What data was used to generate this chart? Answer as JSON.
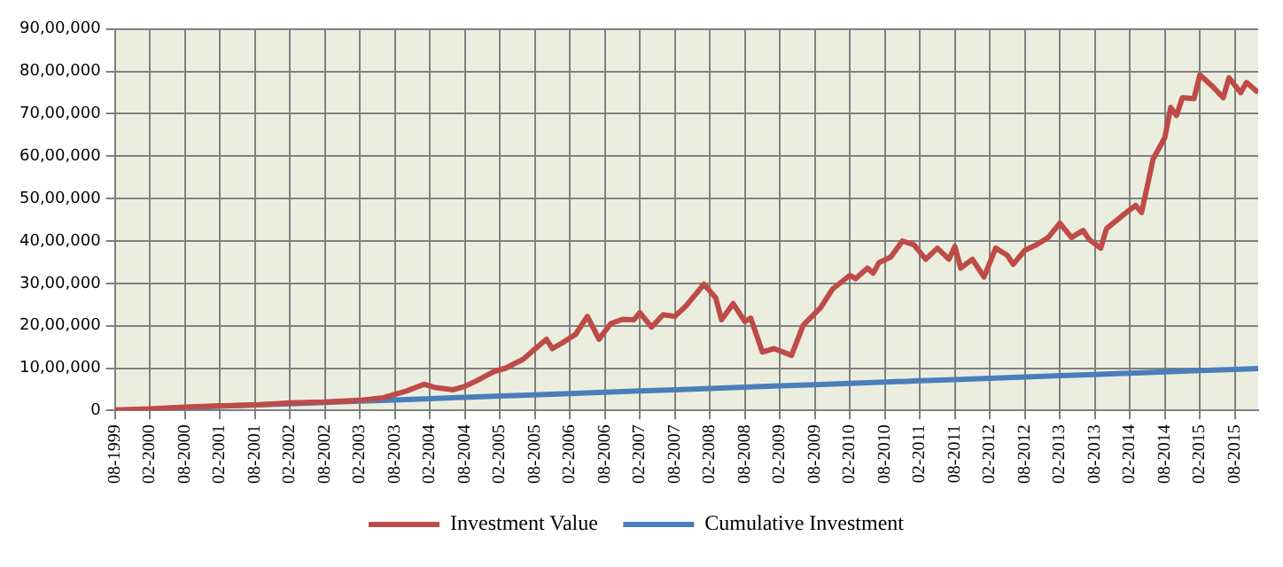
{
  "chart_data": {
    "type": "line",
    "legend": "bottom",
    "grid": true,
    "marker": "none",
    "line_style": "solid",
    "xlim": [
      "1999-08",
      "2015-12"
    ],
    "xticks": [
      {
        "value": "1999-08",
        "label": "08-1999"
      },
      {
        "value": "2000-02",
        "label": "02-2000"
      },
      {
        "value": "2000-08",
        "label": "08-2000"
      },
      {
        "value": "2001-02",
        "label": "02-2001"
      },
      {
        "value": "2001-08",
        "label": "08-2001"
      },
      {
        "value": "2002-02",
        "label": "02-2002"
      },
      {
        "value": "2002-08",
        "label": "08-2002"
      },
      {
        "value": "2003-02",
        "label": "02-2003"
      },
      {
        "value": "2003-08",
        "label": "08-2003"
      },
      {
        "value": "2004-02",
        "label": "02-2004"
      },
      {
        "value": "2004-08",
        "label": "08-2004"
      },
      {
        "value": "2005-02",
        "label": "02-2005"
      },
      {
        "value": "2005-08",
        "label": "08-2005"
      },
      {
        "value": "2006-02",
        "label": "02-2006"
      },
      {
        "value": "2006-08",
        "label": "08-2006"
      },
      {
        "value": "2007-02",
        "label": "02-2007"
      },
      {
        "value": "2007-08",
        "label": "08-2007"
      },
      {
        "value": "2008-02",
        "label": "02-2008"
      },
      {
        "value": "2008-08",
        "label": "08-2008"
      },
      {
        "value": "2009-02",
        "label": "02-2009"
      },
      {
        "value": "2009-08",
        "label": "08-2009"
      },
      {
        "value": "2010-02",
        "label": "02-2010"
      },
      {
        "value": "2010-08",
        "label": "08-2010"
      },
      {
        "value": "2011-02",
        "label": "02-2011"
      },
      {
        "value": "2011-08",
        "label": "08-2011"
      },
      {
        "value": "2012-02",
        "label": "02-2012"
      },
      {
        "value": "2012-08",
        "label": "08-2012"
      },
      {
        "value": "2013-02",
        "label": "02-2013"
      },
      {
        "value": "2013-08",
        "label": "08-2013"
      },
      {
        "value": "2014-02",
        "label": "02-2014"
      },
      {
        "value": "2014-08",
        "label": "08-2014"
      },
      {
        "value": "2015-02",
        "label": "02-2015"
      },
      {
        "value": "2015-08",
        "label": "08-2015"
      }
    ],
    "ylim": [
      0,
      9000000
    ],
    "yticks": [
      0,
      {
        "value": 1000000,
        "label": "10,00,000"
      },
      {
        "value": 2000000,
        "label": "20,00,000"
      },
      {
        "value": 3000000,
        "label": "30,00,000"
      },
      {
        "value": 4000000,
        "label": "40,00,000"
      },
      {
        "value": 5000000,
        "label": "50,00,000"
      },
      {
        "value": 6000000,
        "label": "60,00,000"
      },
      {
        "value": 7000000,
        "label": "70,00,000"
      },
      {
        "value": 8000000,
        "label": "80,00,000"
      },
      {
        "value": 9000000,
        "label": "90,00,000"
      }
    ],
    "series": [
      {
        "name": "Cumulative Investment",
        "color": "#4a7ebb",
        "x": [
          "1999-08",
          "2000-02",
          "2000-08",
          "2001-02",
          "2001-08",
          "2002-02",
          "2002-08",
          "2003-02",
          "2003-08",
          "2004-02",
          "2004-08",
          "2005-02",
          "2005-08",
          "2006-02",
          "2006-08",
          "2007-02",
          "2007-08",
          "2008-02",
          "2008-08",
          "2009-02",
          "2009-08",
          "2010-02",
          "2010-08",
          "2011-02",
          "2011-08",
          "2012-02",
          "2012-08",
          "2013-02",
          "2013-08",
          "2014-02",
          "2014-08",
          "2015-02",
          "2015-08",
          "2015-12"
        ],
        "values": [
          0,
          30000,
          70000,
          100000,
          130000,
          160000,
          190000,
          220000,
          250000,
          280000,
          310000,
          340000,
          370000,
          400000,
          430000,
          460000,
          490000,
          520000,
          550000,
          580000,
          610000,
          640000,
          670000,
          700000,
          730000,
          760000,
          790000,
          820000,
          850000,
          880000,
          910000,
          940000,
          970000,
          990000
        ]
      },
      {
        "name": "Investment Value",
        "color": "#be4b48",
        "x": [
          "1999-08",
          "2000-02",
          "2000-08",
          "2001-02",
          "2001-08",
          "2002-02",
          "2002-08",
          "2003-02",
          "2003-06",
          "2003-08",
          "2003-10",
          "2004-01",
          "2004-03",
          "2004-06",
          "2004-08",
          "2004-10",
          "2005-01",
          "2005-03",
          "2005-06",
          "2005-08",
          "2005-10",
          "2005-11",
          "2006-01",
          "2006-03",
          "2006-05",
          "2006-07",
          "2006-09",
          "2006-11",
          "2007-01",
          "2007-02",
          "2007-04",
          "2007-06",
          "2007-08",
          "2007-10",
          "2008-01",
          "2008-03",
          "2008-04",
          "2008-06",
          "2008-08",
          "2008-09",
          "2008-11",
          "2009-01",
          "2009-04",
          "2009-06",
          "2009-09",
          "2009-11",
          "2010-02",
          "2010-03",
          "2010-05",
          "2010-06",
          "2010-07",
          "2010-09",
          "2010-11",
          "2011-01",
          "2011-03",
          "2011-05",
          "2011-07",
          "2011-08",
          "2011-09",
          "2011-11",
          "2012-01",
          "2012-03",
          "2012-05",
          "2012-06",
          "2012-08",
          "2012-10",
          "2012-12",
          "2013-02",
          "2013-04",
          "2013-06",
          "2013-07",
          "2013-09",
          "2013-10",
          "2014-01",
          "2014-03",
          "2014-04",
          "2014-05",
          "2014-06",
          "2014-08",
          "2014-09",
          "2014-10",
          "2014-11",
          "2015-01",
          "2015-02",
          "2015-04",
          "2015-06",
          "2015-07",
          "2015-09",
          "2015-10",
          "2015-12"
        ],
        "values": [
          10000,
          40000,
          80000,
          110000,
          130000,
          180000,
          200000,
          240000,
          300000,
          380000,
          460000,
          620000,
          540000,
          490000,
          570000,
          700000,
          920000,
          1000000,
          1210000,
          1450000,
          1680000,
          1460000,
          1620000,
          1800000,
          2220000,
          1680000,
          2050000,
          2150000,
          2140000,
          2310000,
          1970000,
          2260000,
          2220000,
          2480000,
          2980000,
          2660000,
          2140000,
          2520000,
          2100000,
          2180000,
          1380000,
          1460000,
          1300000,
          2010000,
          2430000,
          2860000,
          3190000,
          3110000,
          3360000,
          3240000,
          3490000,
          3620000,
          4000000,
          3910000,
          3570000,
          3830000,
          3570000,
          3870000,
          3360000,
          3570000,
          3150000,
          3830000,
          3660000,
          3450000,
          3780000,
          3910000,
          4080000,
          4420000,
          4080000,
          4250000,
          4040000,
          3830000,
          4290000,
          4630000,
          4840000,
          4670000,
          5300000,
          5940000,
          6440000,
          7150000,
          6960000,
          7380000,
          7360000,
          7920000,
          7670000,
          7380000,
          7850000,
          7500000,
          7740000,
          7500000
        ]
      }
    ]
  }
}
